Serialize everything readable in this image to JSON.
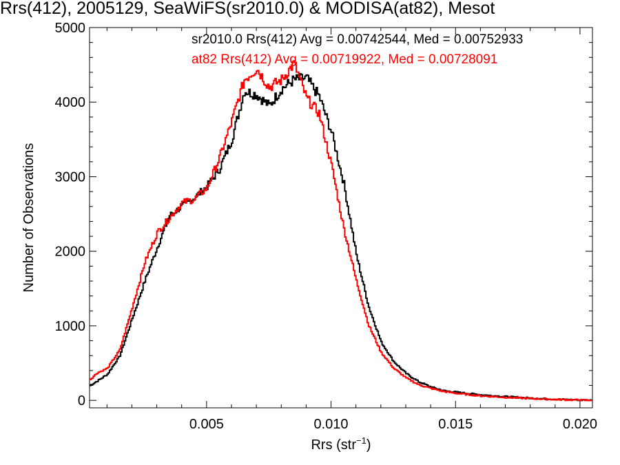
{
  "chart_data": {
    "type": "line",
    "title": "Rrs(412), 2005129, SeaWiFS(sr2010.0) & MODISA(at82), Mesot",
    "xlabel": "Rrs (str",
    "xlabel_sup": "−1",
    "xlabel_close": ")",
    "ylabel": "Number of Observations",
    "xlim": [
      0.0003,
      0.0205
    ],
    "ylim": [
      -100,
      5000
    ],
    "xticks": [
      0.005,
      0.01,
      0.015,
      0.02
    ],
    "xtick_labels": [
      "0.005",
      "0.010",
      "0.015",
      "0.020"
    ],
    "yticks": [
      0,
      1000,
      2000,
      3000,
      4000,
      5000
    ],
    "ytick_labels": [
      "0",
      "1000",
      "2000",
      "3000",
      "4000",
      "5000"
    ],
    "legend": [
      {
        "text": "sr2010.0 Rrs(412) Avg = 0.00742544, Med = 0.00752933",
        "color": "#000000"
      },
      {
        "text": "at82 Rrs(412) Avg = 0.00719922, Med = 0.00728091",
        "color": "#ff0000"
      }
    ],
    "series": [
      {
        "name": "sr2010.0",
        "color": "#000000",
        "x": [
          0.0003,
          0.0006,
          0.001,
          0.0015,
          0.002,
          0.0025,
          0.003,
          0.0035,
          0.004,
          0.0045,
          0.005,
          0.0055,
          0.006,
          0.0065,
          0.007,
          0.0075,
          0.008,
          0.0085,
          0.009,
          0.0095,
          0.01,
          0.0105,
          0.011,
          0.0115,
          0.012,
          0.0125,
          0.013,
          0.0135,
          0.014,
          0.0145,
          0.015,
          0.016,
          0.017,
          0.018,
          0.019,
          0.02,
          0.0205
        ],
        "y": [
          200,
          260,
          350,
          600,
          1100,
          1600,
          2050,
          2480,
          2600,
          2720,
          2870,
          3100,
          3500,
          4150,
          4100,
          3950,
          4180,
          4300,
          4320,
          4080,
          3600,
          2900,
          1950,
          1250,
          780,
          520,
          360,
          250,
          180,
          130,
          110,
          75,
          50,
          30,
          15,
          5,
          0
        ]
      },
      {
        "name": "at82",
        "color": "#ff0000",
        "x": [
          0.0003,
          0.0006,
          0.001,
          0.0015,
          0.002,
          0.0025,
          0.003,
          0.0035,
          0.004,
          0.0045,
          0.005,
          0.0055,
          0.006,
          0.0065,
          0.007,
          0.0075,
          0.008,
          0.0085,
          0.009,
          0.0095,
          0.01,
          0.0105,
          0.011,
          0.0115,
          0.012,
          0.0125,
          0.013,
          0.0135,
          0.014,
          0.0145,
          0.015,
          0.016,
          0.017,
          0.018,
          0.019,
          0.02,
          0.0205
        ],
        "y": [
          280,
          370,
          430,
          680,
          1250,
          1850,
          2250,
          2450,
          2650,
          2700,
          2850,
          3250,
          3750,
          4300,
          4450,
          4200,
          4300,
          4520,
          4050,
          3850,
          3150,
          2300,
          1600,
          1000,
          640,
          430,
          300,
          210,
          160,
          120,
          95,
          60,
          40,
          25,
          12,
          4,
          0
        ]
      }
    ]
  }
}
